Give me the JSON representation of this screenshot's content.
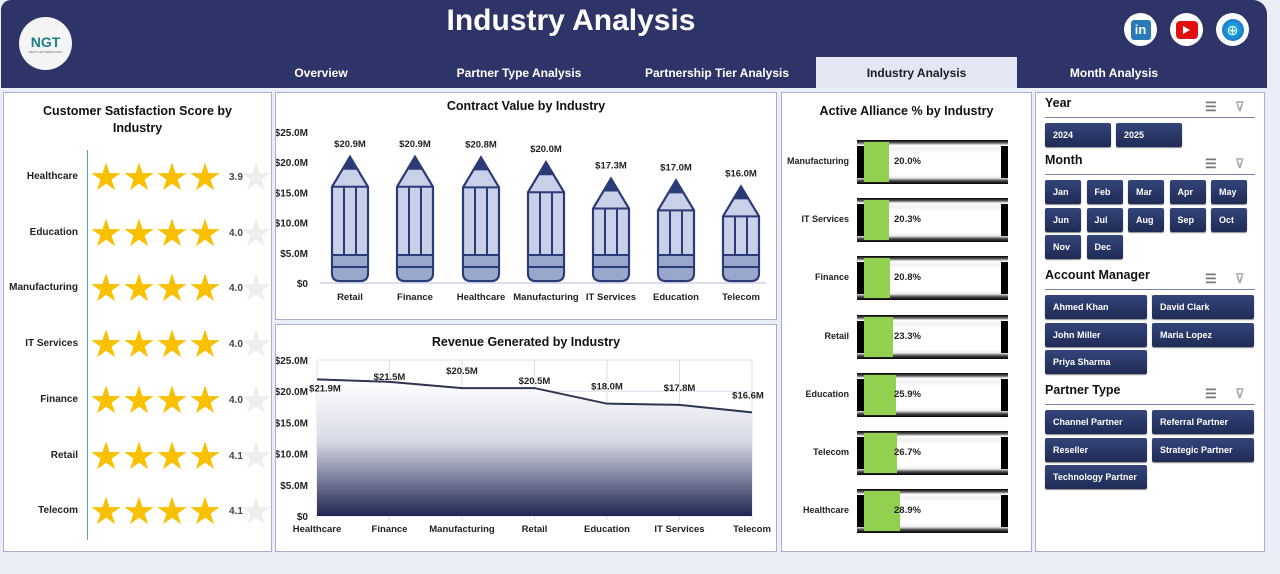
{
  "header": {
    "title": "Industry Analysis",
    "logo_text": "NGT",
    "logo_subtext": "NEXT GEN TEMPLATES",
    "social": [
      {
        "icon": "linkedin-icon",
        "label": "in"
      },
      {
        "icon": "youtube-icon"
      },
      {
        "icon": "globe-icon"
      }
    ]
  },
  "tabs": [
    {
      "label": "Overview"
    },
    {
      "label": "Partner Type Analysis"
    },
    {
      "label": "Partnership Tier Analysis"
    },
    {
      "label": "Industry Analysis",
      "active": true
    },
    {
      "label": "Month Analysis"
    }
  ],
  "colors": {
    "navy": "#2f3468",
    "star": "#f9c000",
    "green": "#92d050",
    "pencil": "#c9d1e8"
  },
  "chart_data": [
    {
      "type": "bar",
      "title": "Customer Satisfaction Score by Industry",
      "categories": [
        "Healthcare",
        "Education",
        "Manufacturing",
        "IT Services",
        "Finance",
        "Retail",
        "Telecom"
      ],
      "values": [
        3.9,
        4.0,
        4.0,
        4.0,
        4.0,
        4.1,
        4.1
      ],
      "value_labels": [
        "3.9",
        "4.0",
        "4.0",
        "4.0",
        "4.0",
        "4.1",
        "4.1"
      ],
      "max": 5
    },
    {
      "type": "bar",
      "title": "Contract Value by Industry",
      "categories": [
        "Retail",
        "Finance",
        "Healthcare",
        "Manufacturing",
        "IT Services",
        "Education",
        "Telecom"
      ],
      "values": [
        20.9,
        20.9,
        20.8,
        20.0,
        17.3,
        17.0,
        16.0
      ],
      "value_labels": [
        "$20.9M",
        "$20.9M",
        "$20.8M",
        "$20.0M",
        "$17.3M",
        "$17.0M",
        "$16.0M"
      ],
      "yticks": [
        "$0",
        "$5.0M",
        "$10.0M",
        "$15.0M",
        "$20.0M",
        "$25.0M"
      ],
      "ylim": [
        0,
        25
      ]
    },
    {
      "type": "area",
      "title": "Revenue Generated by Industry",
      "categories": [
        "Healthcare",
        "Finance",
        "Manufacturing",
        "Retail",
        "Education",
        "IT Services",
        "Telecom"
      ],
      "values": [
        21.9,
        21.5,
        20.5,
        20.5,
        18.0,
        17.8,
        16.6
      ],
      "value_labels": [
        "$21.9M",
        "$21.5M",
        "$20.5M",
        "$20.5M",
        "$18.0M",
        "$17.8M",
        "$16.6M"
      ],
      "yticks": [
        "$0",
        "$5.0M",
        "$10.0M",
        "$15.0M",
        "$20.0M",
        "$25.0M"
      ],
      "ylim": [
        0,
        25
      ],
      "grid": true
    },
    {
      "type": "bar",
      "title": "Active Alliance % by Industry",
      "categories": [
        "Manufacturing",
        "IT Services",
        "Finance",
        "Retail",
        "Education",
        "Telecom",
        "Healthcare"
      ],
      "values": [
        20.0,
        20.3,
        20.8,
        23.3,
        25.9,
        26.7,
        28.9
      ],
      "value_labels": [
        "20.0%",
        "20.3%",
        "20.8%",
        "23.3%",
        "25.9%",
        "26.7%",
        "28.9%"
      ]
    }
  ],
  "slicers": [
    {
      "title": "Year",
      "items": [
        "2024",
        "2025"
      ]
    },
    {
      "title": "Month",
      "items": [
        "Jan",
        "Feb",
        "Mar",
        "Apr",
        "May",
        "Jun",
        "Jul",
        "Aug",
        "Sep",
        "Oct",
        "Nov",
        "Dec"
      ]
    },
    {
      "title": "Account Manager",
      "items": [
        "Ahmed Khan",
        "David Clark",
        "John Miller",
        "Maria Lopez",
        "Priya Sharma"
      ]
    },
    {
      "title": "Partner Type",
      "items": [
        "Channel Partner",
        "Referral Partner",
        "Reseller",
        "Strategic Partner",
        "Technology Partner"
      ]
    }
  ]
}
